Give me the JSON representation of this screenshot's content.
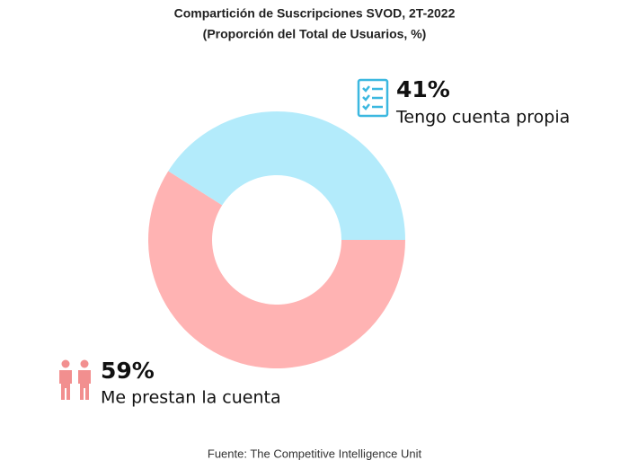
{
  "chart_data": {
    "type": "pie",
    "title": "Compartición de Suscripciones SVOD, 2T-2022",
    "subtitle": "(Proporción del Total de Usuarios, %)",
    "categories": [
      "Tengo cuenta propia",
      "Me prestan la cuenta"
    ],
    "values": [
      41,
      59
    ],
    "value_labels": [
      "41%",
      "59%"
    ],
    "colors": [
      "#b3ebfb",
      "#ffb3b3"
    ],
    "source": "Fuente: The Competitive Intelligence Unit"
  }
}
